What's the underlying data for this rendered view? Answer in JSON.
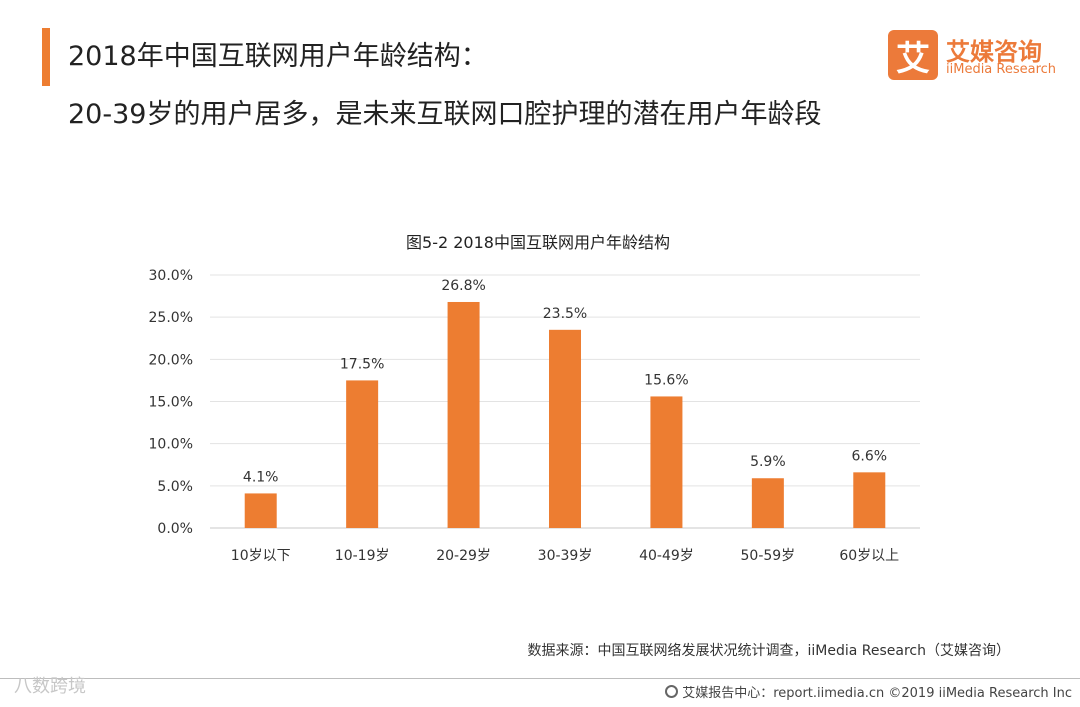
{
  "header": {
    "line1": "2018年中国互联网用户年龄结构：",
    "line2": "20-39岁的用户居多，是未来互联网口腔护理的潜在用户年龄段"
  },
  "logo": {
    "mark": "艾",
    "cn": "艾媒咨询",
    "en": "iiMedia Research"
  },
  "colors": {
    "accent": "#ed7d31",
    "bar": "#ed7d31"
  },
  "chart_data": {
    "type": "bar",
    "title": "图5-2 2018中国互联网用户年龄结构",
    "categories": [
      "10岁以下",
      "10-19岁",
      "20-29岁",
      "30-39岁",
      "40-49岁",
      "50-59岁",
      "60岁以上"
    ],
    "values": [
      4.1,
      17.5,
      26.8,
      23.5,
      15.6,
      5.9,
      6.6
    ],
    "data_labels": [
      "4.1%",
      "17.5%",
      "26.8%",
      "23.5%",
      "15.6%",
      "5.9%",
      "6.6%"
    ],
    "ylim": [
      0,
      30
    ],
    "yticks": [
      "0.0%",
      "5.0%",
      "10.0%",
      "15.0%",
      "20.0%",
      "25.0%",
      "30.0%"
    ],
    "xlabel": "",
    "ylabel": "",
    "grid": true,
    "legend": "none"
  },
  "source": "数据来源：中国互联网络发展状况统计调查，iiMedia Research（艾媒咨询）",
  "watermark": "八数跨境",
  "footer": {
    "text": "艾媒报告中心：report.iimedia.cn ©2019 iiMedia Research Inc"
  }
}
